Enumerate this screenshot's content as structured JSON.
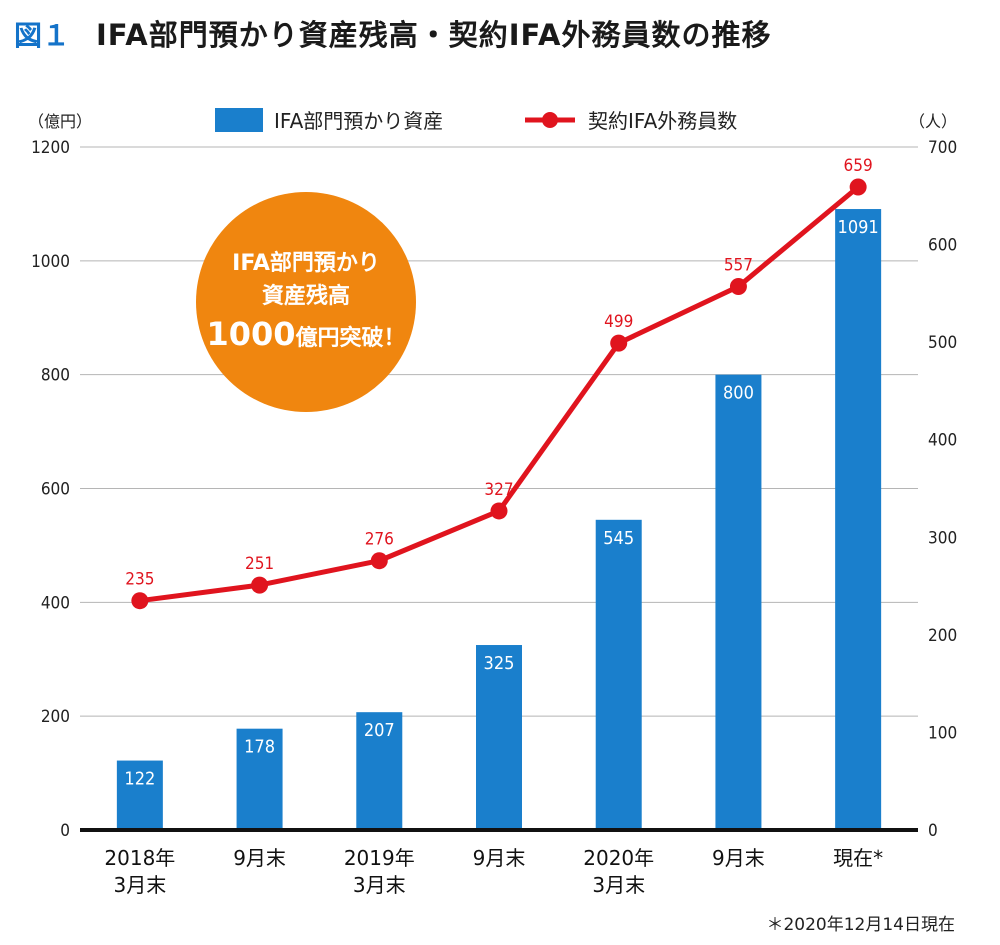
{
  "figure": {
    "label": "図１",
    "title": "IFA部門預かり資産残高・契約IFA外務員数の推移",
    "note": "＊2020年12月14日現在"
  },
  "callout": {
    "line1": "IFA部門預かり",
    "line2": "資産残高",
    "line3_number": "1000",
    "line3_text": "億円突破！",
    "color": "#f0860f"
  },
  "chart_data": {
    "type": "bar",
    "categories": [
      [
        "2018年",
        "3月末"
      ],
      [
        "9月末"
      ],
      [
        "2019年",
        "3月末"
      ],
      [
        "9月末"
      ],
      [
        "2020年",
        "3月末"
      ],
      [
        "9月末"
      ],
      [
        "現在*"
      ]
    ],
    "series": [
      {
        "name": "IFA部門預かり資産",
        "kind": "bar",
        "axis": "left",
        "color": "#1a7fcc",
        "values": [
          122,
          178,
          207,
          325,
          545,
          800,
          1091
        ]
      },
      {
        "name": "契約IFA外務員数",
        "kind": "line",
        "axis": "right",
        "color": "#e0141e",
        "values": [
          235,
          251,
          276,
          327,
          499,
          557,
          659
        ]
      }
    ],
    "y_left": {
      "unit": "（億円）",
      "ylim": [
        0,
        1200
      ],
      "ticks": [
        0,
        200,
        400,
        600,
        800,
        1000,
        1200
      ]
    },
    "y_right": {
      "unit": "（人）",
      "ylim": [
        0,
        700
      ],
      "ticks": [
        0,
        100,
        200,
        300,
        400,
        500,
        600,
        700
      ]
    },
    "grid": true,
    "legend_position": "top-center"
  }
}
